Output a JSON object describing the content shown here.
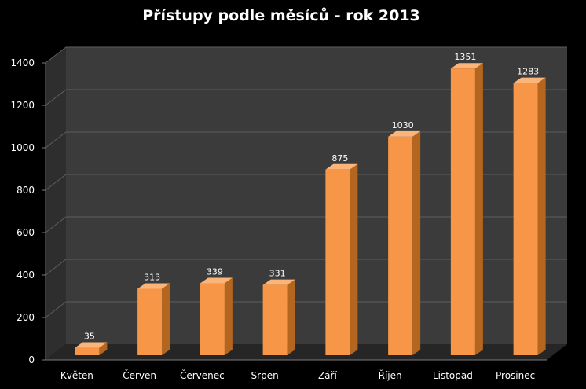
{
  "chart_data": {
    "type": "bar",
    "title": "Přístupy podle měsíců - rok 2013",
    "categories": [
      "Květen",
      "Červen",
      "Červenec",
      "Srpen",
      "Září",
      "Říjen",
      "Listopad",
      "Prosinec"
    ],
    "values": [
      35,
      313,
      339,
      331,
      875,
      1030,
      1351,
      1283
    ],
    "ylim": [
      0,
      1400
    ],
    "yticks": [
      "0",
      "200",
      "400",
      "600",
      "800",
      "1000",
      "1200",
      "1400"
    ],
    "data_labels": [
      "35",
      "313",
      "339",
      "331",
      "875",
      "1030",
      "1351",
      "1283"
    ],
    "xlabel": "",
    "ylabel": "",
    "grid": true,
    "legend": "none",
    "colors": {
      "background": "#000000",
      "plot_wall": "#3b3b3b",
      "floor": "#262626",
      "bar_front": "#f79646",
      "bar_side": "#b4651e",
      "bar_top": "#fbb47a",
      "gridline": "#5e5e5e",
      "text": "#ffffff"
    }
  }
}
